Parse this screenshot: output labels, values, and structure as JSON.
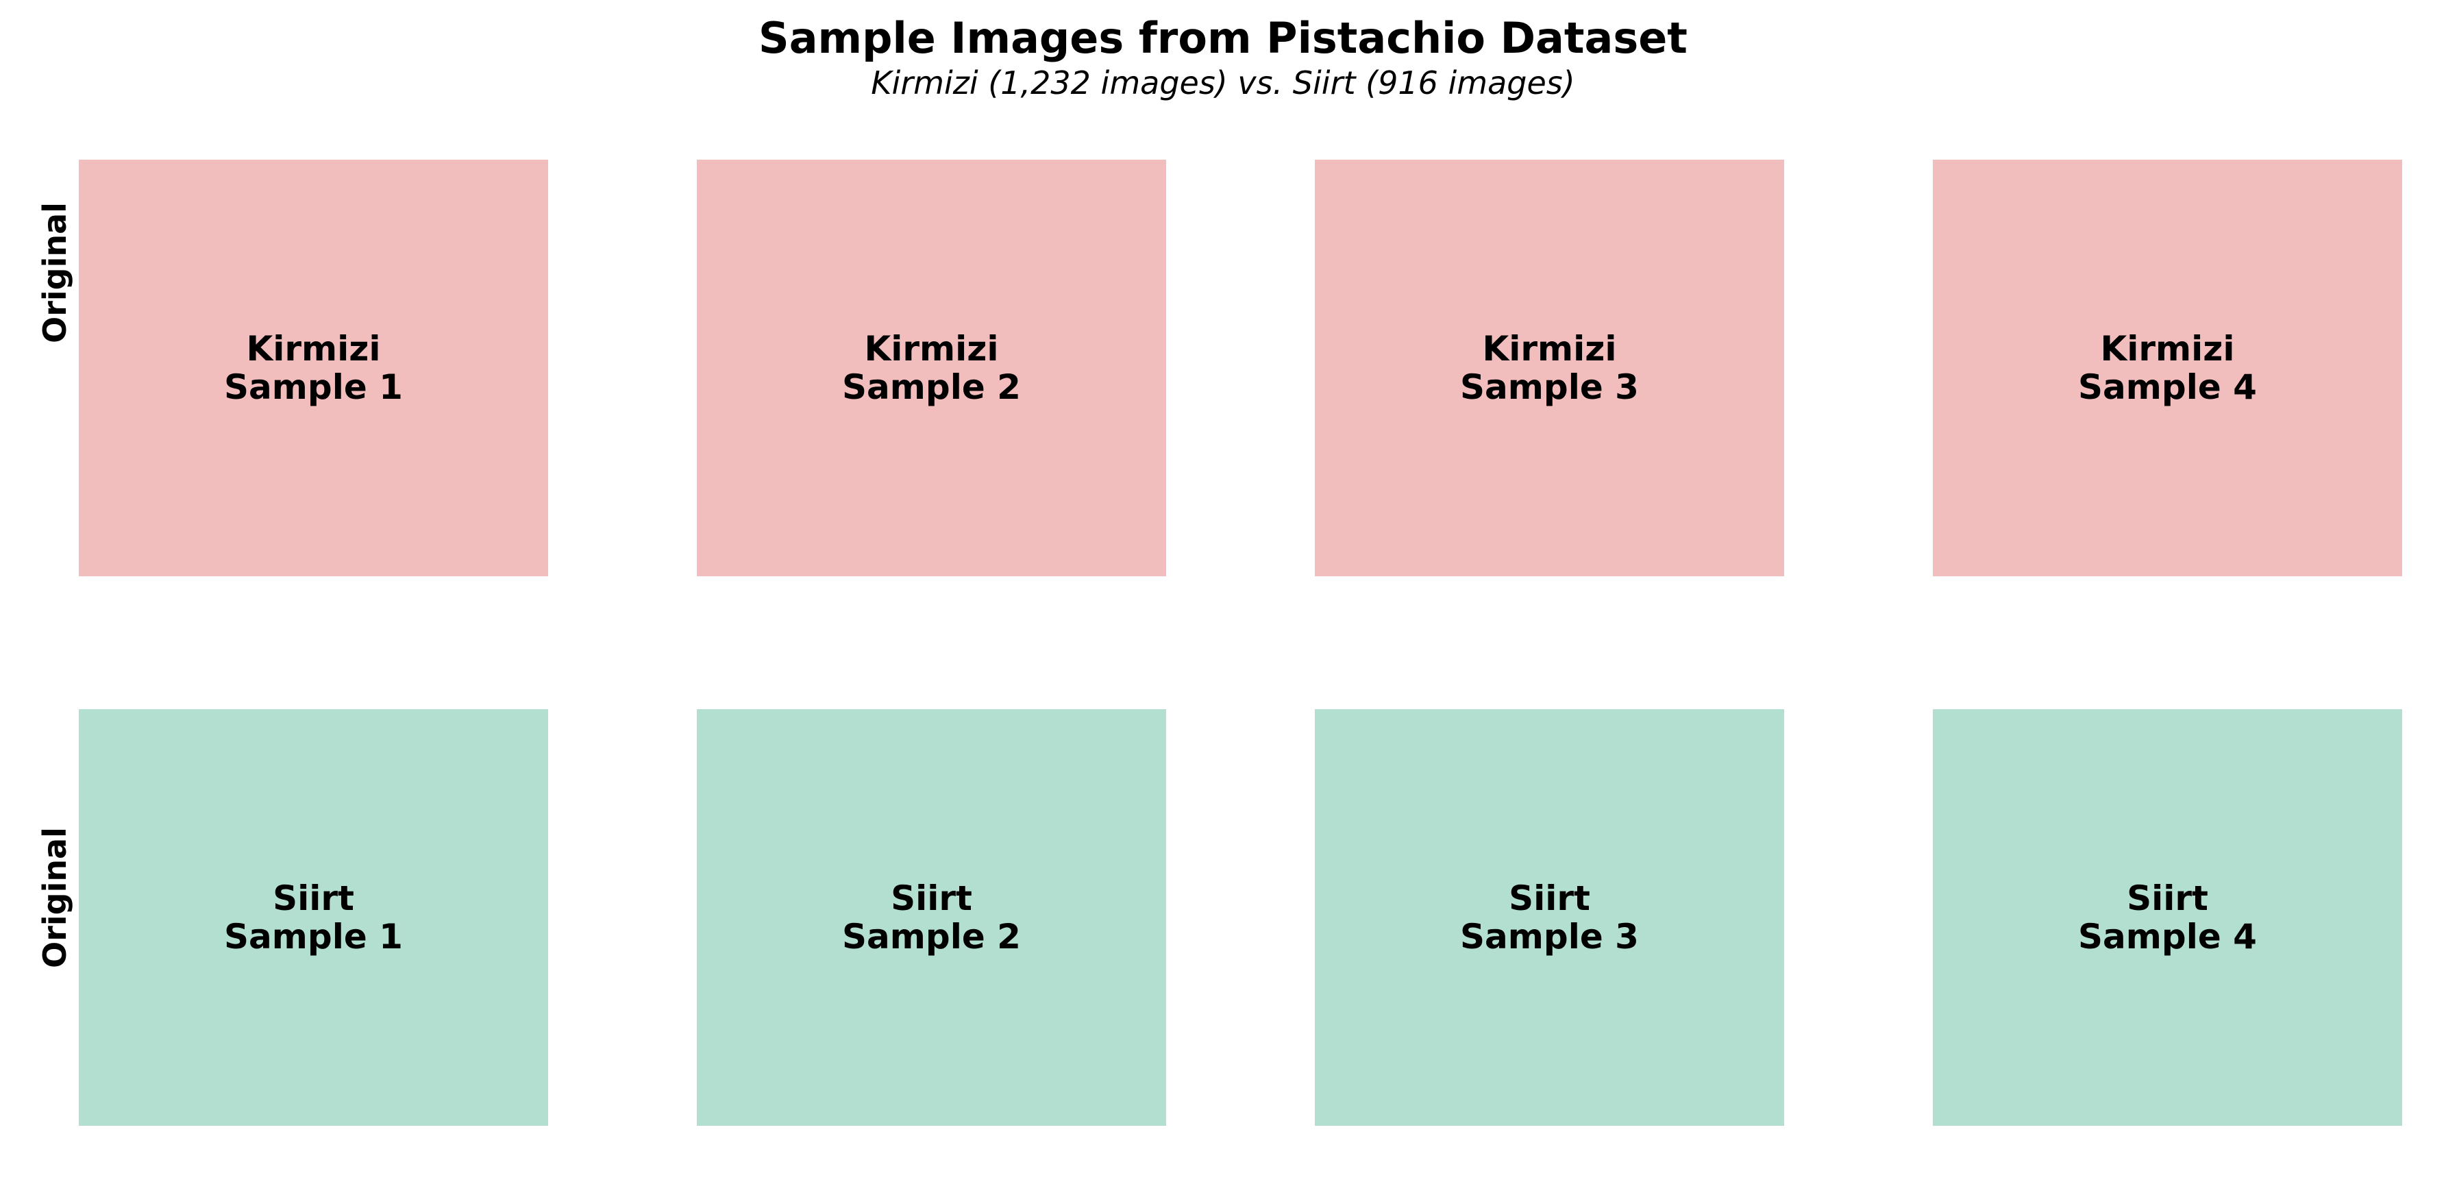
{
  "figure": {
    "title": "Sample Images from Pistachio Dataset",
    "subtitle": "Kirmizi (1,232 images) vs. Siirt (916 images)"
  },
  "rows": [
    {
      "label": "Original",
      "color": "#f2bdbd",
      "panels": [
        {
          "class_name": "Kirmizi",
          "sample": "Sample 1"
        },
        {
          "class_name": "Kirmizi",
          "sample": "Sample 2"
        },
        {
          "class_name": "Kirmizi",
          "sample": "Sample 3"
        },
        {
          "class_name": "Kirmizi",
          "sample": "Sample 4"
        }
      ]
    },
    {
      "label": "Original",
      "color": "#b3dfd1",
      "panels": [
        {
          "class_name": "Siirt",
          "sample": "Sample 1"
        },
        {
          "class_name": "Siirt",
          "sample": "Sample 2"
        },
        {
          "class_name": "Siirt",
          "sample": "Sample 3"
        },
        {
          "class_name": "Siirt",
          "sample": "Sample 4"
        }
      ]
    }
  ]
}
